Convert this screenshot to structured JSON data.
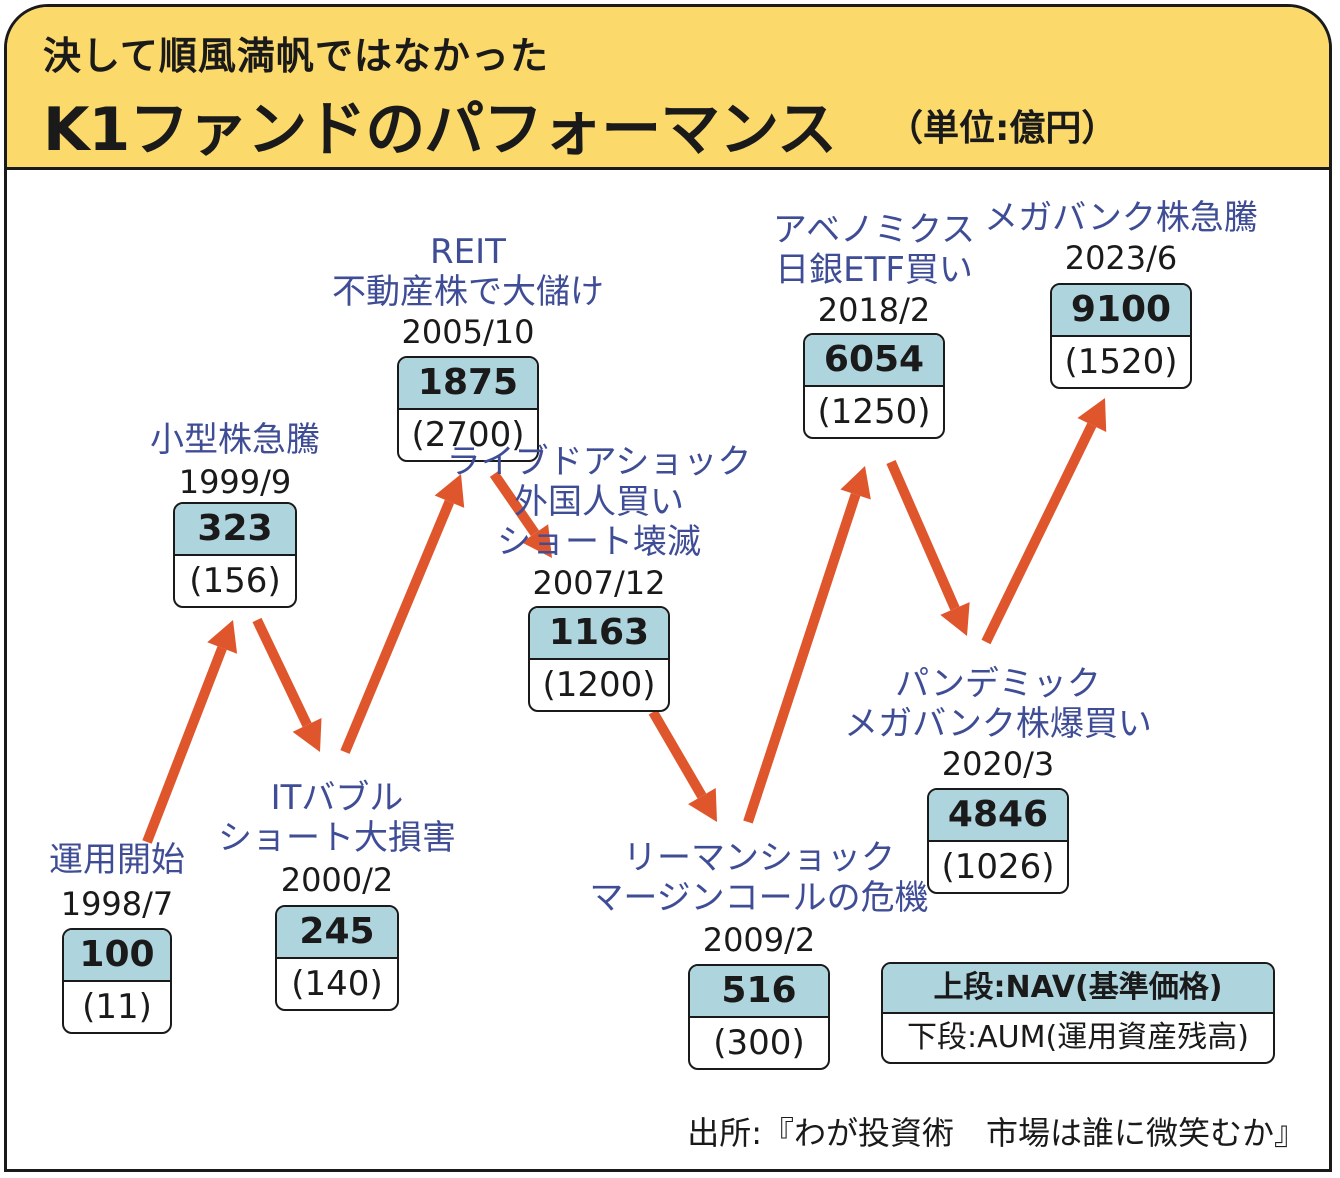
{
  "header": {
    "subtitle": "決して順風満帆ではなかった",
    "title": "K1ファンドのパフォーマンス",
    "unit": "（単位:億円）"
  },
  "colors": {
    "header_bg": "#fbd96a",
    "arrow": "#e0562c",
    "event_text": "#3f4d96",
    "box_top": "#aed4de"
  },
  "chart_data": {
    "type": "line",
    "title": "K1ファンドのパフォーマンス",
    "unit": "億円",
    "x": [
      "1998/7",
      "1999/9",
      "2000/2",
      "2005/10",
      "2007/12",
      "2009/2",
      "2018/2",
      "2020/3",
      "2023/6"
    ],
    "series": [
      {
        "name": "NAV(基準価格)",
        "values": [
          100,
          323,
          245,
          1875,
          1163,
          516,
          6054,
          4846,
          9100
        ]
      },
      {
        "name": "AUM(運用資産残高)",
        "values": [
          11,
          156,
          140,
          2700,
          1200,
          300,
          1250,
          1026,
          1520
        ]
      }
    ],
    "events": [
      {
        "date": "1998/7",
        "label_lines": [
          "運用開始"
        ],
        "nav": "100",
        "aum": "(11)"
      },
      {
        "date": "1999/9",
        "label_lines": [
          "小型株急騰"
        ],
        "nav": "323",
        "aum": "(156)"
      },
      {
        "date": "2000/2",
        "label_lines": [
          "ITバブル",
          "ショート大損害"
        ],
        "nav": "245",
        "aum": "(140)"
      },
      {
        "date": "2005/10",
        "label_lines": [
          "REIT",
          "不動産株で大儲け"
        ],
        "nav": "1875",
        "aum": "(2700)"
      },
      {
        "date": "2007/12",
        "label_lines": [
          "ライブドアショック",
          "外国人買い",
          "ショート壊滅"
        ],
        "nav": "1163",
        "aum": "(1200)"
      },
      {
        "date": "2009/2",
        "label_lines": [
          "リーマンショック",
          "マージンコールの危機"
        ],
        "nav": "516",
        "aum": "(300)"
      },
      {
        "date": "2018/2",
        "label_lines": [
          "アベノミクス",
          "日銀ETF買い"
        ],
        "nav": "6054",
        "aum": "(1250)"
      },
      {
        "date": "2020/3",
        "label_lines": [
          "パンデミック",
          "メガバンク株爆買い"
        ],
        "nav": "4846",
        "aum": "(1026)"
      },
      {
        "date": "2023/6",
        "label_lines": [
          "メガバンク株急騰"
        ],
        "nav": "9100",
        "aum": "(1520)"
      }
    ]
  },
  "legend": {
    "top": "上段:NAV(基準価格)",
    "bottom": "下段:AUM(運用資産残高)"
  },
  "source": "出所:『わが投資術　市場は誰に微笑むか』"
}
